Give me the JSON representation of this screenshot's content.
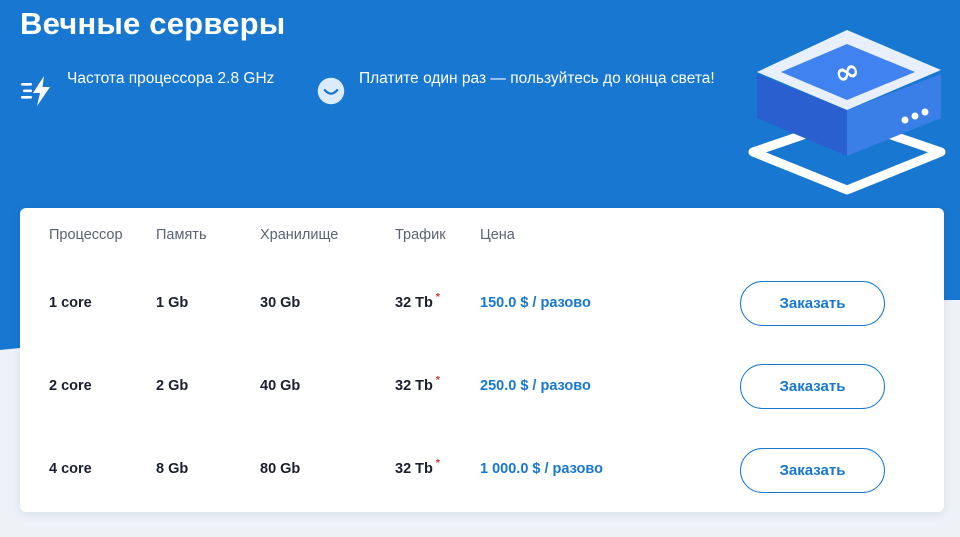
{
  "title": "Вечные серверы",
  "features": [
    {
      "icon": "lightning-speed-icon",
      "text": "Частота процессора 2.8 GHz"
    },
    {
      "icon": "smile-icon",
      "text": "Платите один раз — пользуйтесь до конца света!"
    }
  ],
  "illustration": {
    "icon": "infinity-server-icon"
  },
  "table": {
    "headers": [
      "Процессор",
      "Память",
      "Хранилище",
      "Трафик",
      "Цена"
    ],
    "rows": [
      {
        "cpu": "1 core",
        "memory": "1 Gb",
        "storage": "30 Gb",
        "traffic": "32 Tb",
        "traffic_mark": "*",
        "price": "150.0 $ / разово",
        "order_label": "Заказать"
      },
      {
        "cpu": "2 core",
        "memory": "2 Gb",
        "storage": "40 Gb",
        "traffic": "32 Tb",
        "traffic_mark": "*",
        "price": "250.0 $ / разово",
        "order_label": "Заказать"
      },
      {
        "cpu": "4 core",
        "memory": "8 Gb",
        "storage": "80 Gb",
        "traffic": "32 Tb",
        "traffic_mark": "*",
        "price": "1 000.0 $ / разово",
        "order_label": "Заказать"
      }
    ]
  },
  "colors": {
    "brand_blue": "#1777d1",
    "text_dark": "#1b1f2e",
    "accent_red": "#e0262b"
  }
}
